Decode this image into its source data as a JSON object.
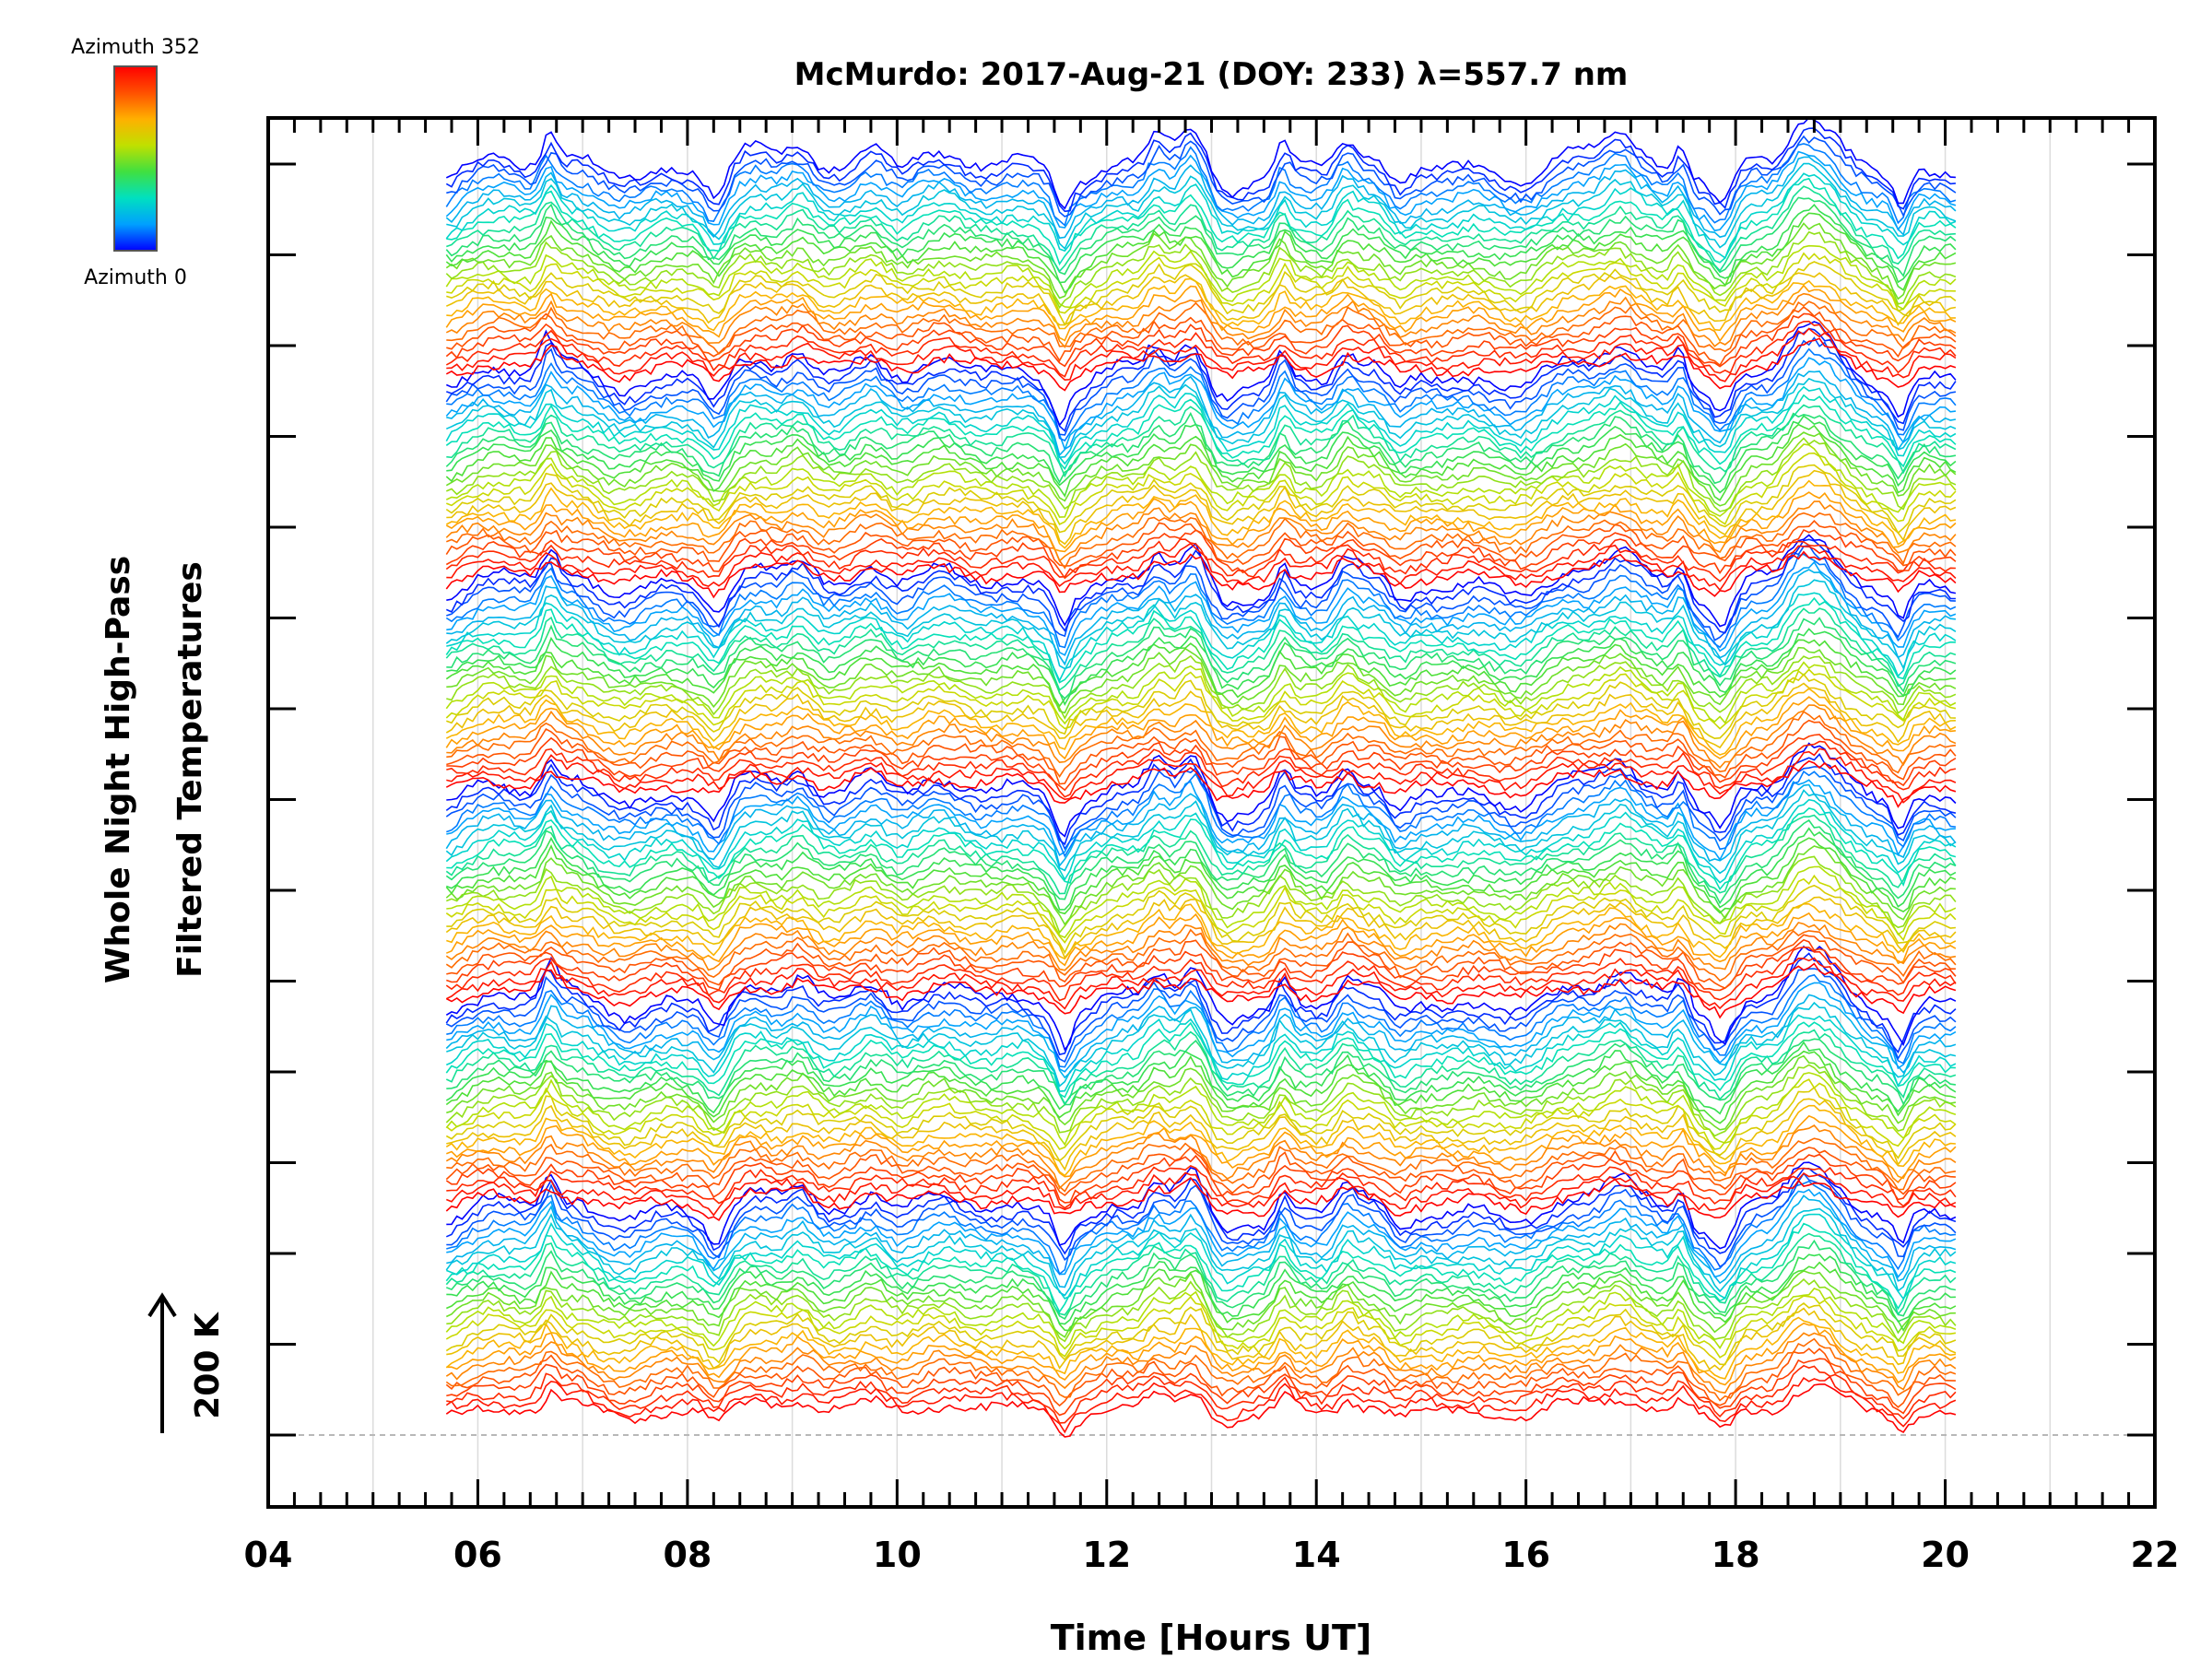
{
  "chart_data": {
    "type": "line",
    "title": "McMurdo: 2017-Aug-21 (DOY: 233) λ=557.7 nm",
    "xlabel": "Time [Hours UT]",
    "ylabel_line1": "Whole Night High-Pass",
    "ylabel_line2": "Filtered Temperatures",
    "scale_label": "200 K",
    "x_range": [
      4,
      22
    ],
    "x_ticks": [
      "04",
      "06",
      "08",
      "10",
      "12",
      "14",
      "16",
      "18",
      "20",
      "22"
    ],
    "data_x_range": [
      5.7,
      20.1
    ],
    "trace_count": 168,
    "trace_groups": 6,
    "traces_per_group": 28,
    "azimuth_range": [
      0,
      352
    ],
    "colorbar": {
      "top_label": "Azimuth 352",
      "bottom_label": "Azimuth 0",
      "colors": [
        "#0000ff",
        "#00a0ff",
        "#00e0c0",
        "#40e040",
        "#c0e000",
        "#ffb000",
        "#ff5000",
        "#ff0000"
      ]
    },
    "gridlines": "vertical, every 1 hour",
    "baseline": "dashed gray reference line at lowest trace offset",
    "feature_times_hours": [
      6.7,
      8.3,
      9.1,
      9.8,
      11.6,
      12.5,
      12.85,
      13.1,
      13.7,
      14.3,
      14.8,
      16.9,
      17.5,
      17.9,
      18.6,
      18.8,
      19.6
    ]
  }
}
